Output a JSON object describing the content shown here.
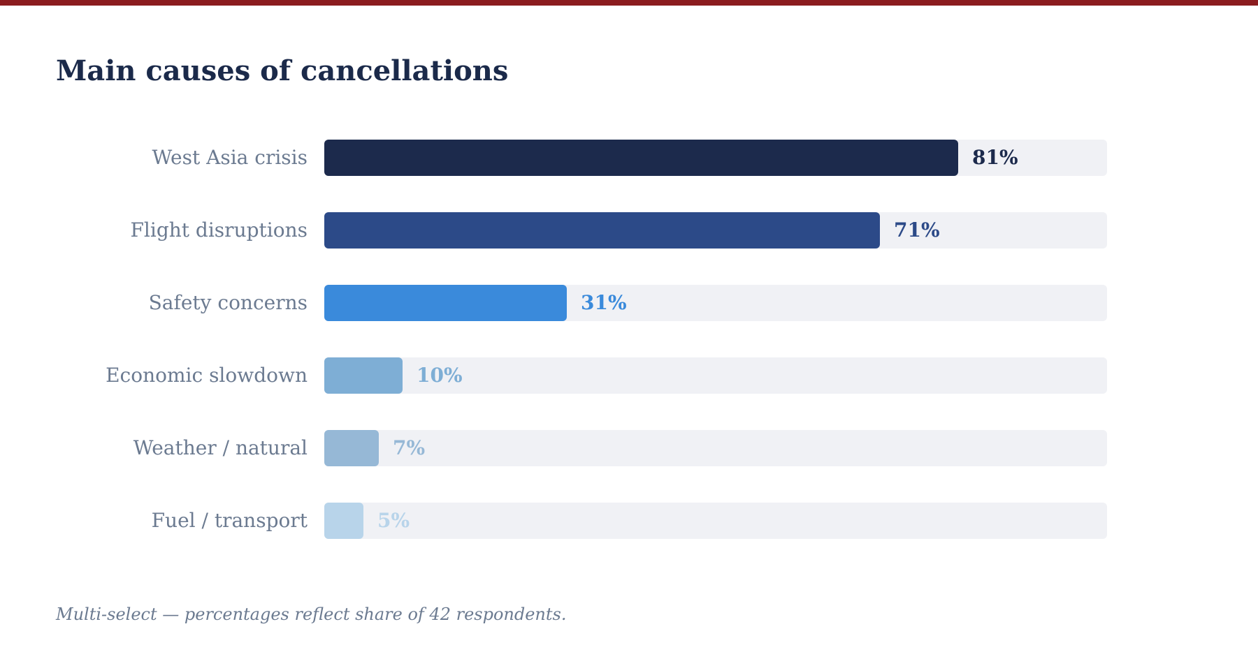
{
  "accent_color": "#8b1c1f",
  "title_color": "#1b2a4a",
  "label_color": "#6b7a90",
  "track_color": "#f0f1f5",
  "chart_data": {
    "type": "bar",
    "orientation": "horizontal",
    "title": "Main causes of cancellations",
    "categories": [
      "West Asia crisis",
      "Flight disruptions",
      "Safety concerns",
      "Economic slowdown",
      "Weather / natural",
      "Fuel / transport"
    ],
    "values": [
      81,
      71,
      31,
      10,
      7,
      5
    ],
    "value_labels": [
      "81%",
      "71%",
      "31%",
      "10%",
      "7%",
      "5%"
    ],
    "colors": [
      "#1c2a4c",
      "#2c4a88",
      "#3a8adb",
      "#7eaed5",
      "#96b8d6",
      "#b8d4ea"
    ],
    "xlim": [
      0,
      100
    ],
    "grid": false,
    "legend": "none"
  },
  "footnote": "Multi-select — percentages reflect share of 42 respondents."
}
